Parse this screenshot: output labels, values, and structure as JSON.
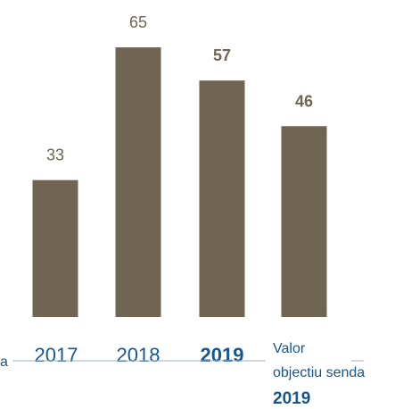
{
  "chart_data": {
    "type": "bar",
    "categories": [
      "2017",
      "2018",
      "2019",
      ""
    ],
    "values": [
      33,
      65,
      57,
      46
    ],
    "emphasis": [
      false,
      false,
      true,
      true
    ],
    "bar_color": "#6f6552",
    "label_color": "#17568f",
    "ylim": [
      0,
      65
    ],
    "target_label_lines": [
      "Valor",
      "objectiu senda"
    ],
    "target_year": "2019",
    "left_clipped_label": "a"
  }
}
